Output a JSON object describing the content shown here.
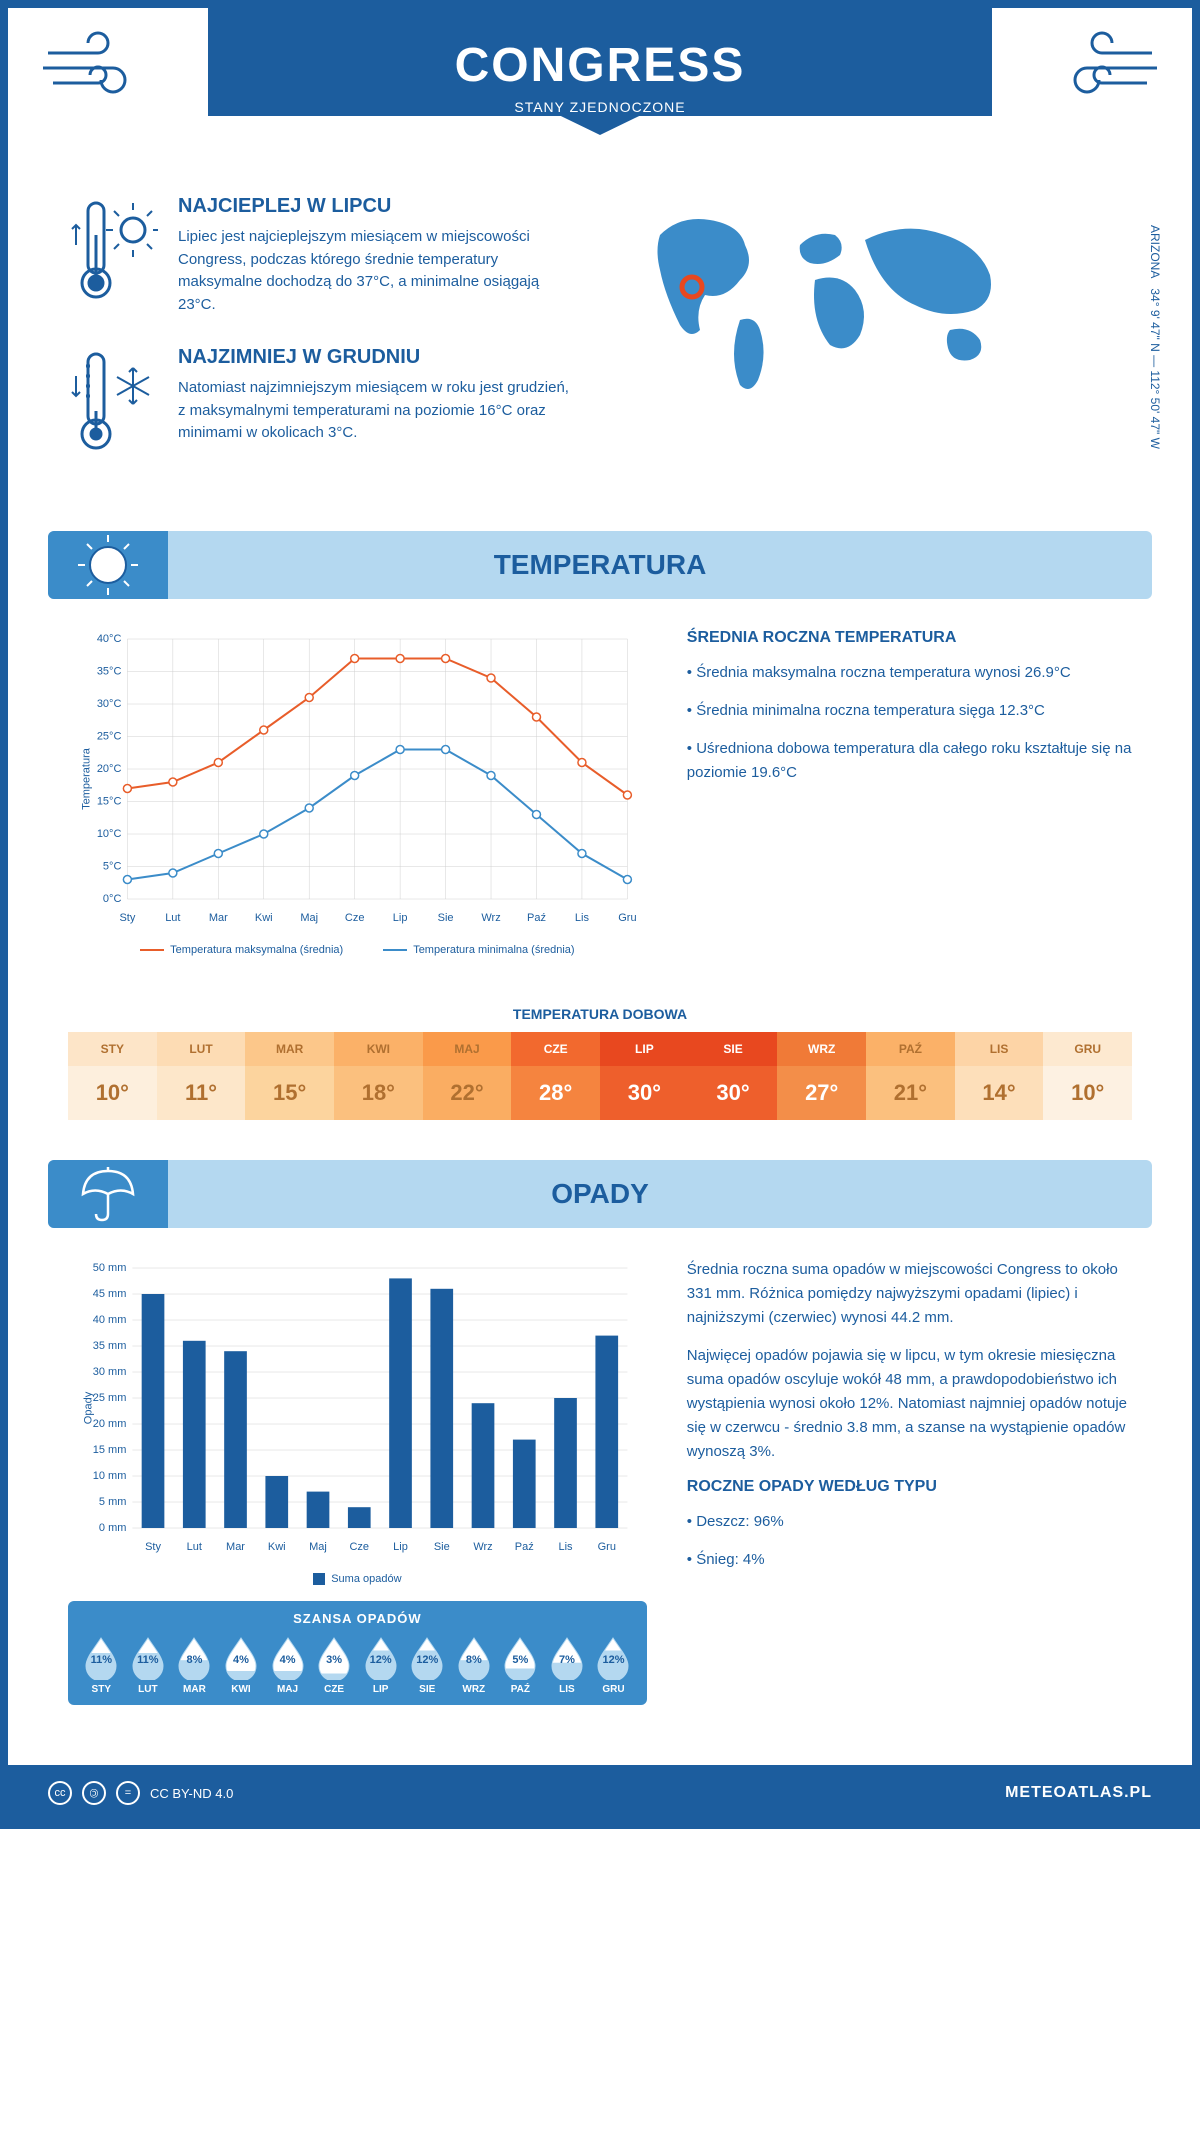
{
  "header": {
    "title": "CONGRESS",
    "subtitle": "STANY ZJEDNOCZONE"
  },
  "coords": {
    "text": "34° 9' 47\" N — 112° 50' 47\" W",
    "region": "ARIZONA"
  },
  "intro": {
    "warmest": {
      "heading": "NAJCIEPLEJ W LIPCU",
      "text": "Lipiec jest najcieplejszym miesiącem w miejscowości Congress, podczas którego średnie temperatury maksymalne dochodzą do 37°C, a minimalne osiągają 23°C."
    },
    "coldest": {
      "heading": "NAJZIMNIEJ W GRUDNIU",
      "text": "Natomiast najzimniejszym miesiącem w roku jest grudzień, z maksymalnymi temperaturami na poziomie 16°C oraz minimami w okolicach 3°C."
    }
  },
  "temperature": {
    "section_title": "TEMPERATURA",
    "months": [
      "Sty",
      "Lut",
      "Mar",
      "Kwi",
      "Maj",
      "Cze",
      "Lip",
      "Sie",
      "Wrz",
      "Paź",
      "Lis",
      "Gru"
    ],
    "max_series": {
      "values": [
        17,
        18,
        21,
        26,
        31,
        37,
        37,
        37,
        34,
        28,
        21,
        16
      ],
      "color": "#e85d2a",
      "label": "Temperatura maksymalna (średnia)"
    },
    "min_series": {
      "values": [
        3,
        4,
        7,
        10,
        14,
        19,
        23,
        23,
        19,
        13,
        7,
        3
      ],
      "color": "#3b8cc9",
      "label": "Temperatura minimalna (średnia)"
    },
    "ylabel": "Temperatura",
    "ylim": [
      0,
      40
    ],
    "ytick_step": 5,
    "ytick_suffix": "°C",
    "grid_color": "#d0d0d0",
    "marker_size": 4,
    "line_width": 2,
    "sidebar": {
      "heading": "ŚREDNIA ROCZNA TEMPERATURA",
      "bullets": [
        "Średnia maksymalna roczna temperatura wynosi 26.9°C",
        "Średnia minimalna roczna temperatura sięga 12.3°C",
        "Uśredniona dobowa temperatura dla całego roku kształtuje się na poziomie 19.6°C"
      ]
    },
    "daily": {
      "title": "TEMPERATURA DOBOWA",
      "months": [
        "STY",
        "LUT",
        "MAR",
        "KWI",
        "MAJ",
        "CZE",
        "LIP",
        "SIE",
        "WRZ",
        "PAŹ",
        "LIS",
        "GRU"
      ],
      "values": [
        "10°",
        "11°",
        "15°",
        "18°",
        "22°",
        "28°",
        "30°",
        "30°",
        "27°",
        "21°",
        "14°",
        "10°"
      ],
      "header_colors": [
        "#fde5c8",
        "#fddcb4",
        "#fcc78a",
        "#fbb168",
        "#fa9a4a",
        "#f2692e",
        "#e8481f",
        "#e8481f",
        "#f07a37",
        "#fbb168",
        "#fdd4a6",
        "#fde9d0"
      ],
      "value_colors": [
        "#fdefdd",
        "#fde7ca",
        "#fcd49e",
        "#fbc07e",
        "#faad62",
        "#f5843f",
        "#ee5f2c",
        "#ee5f2c",
        "#f38e49",
        "#fbc07e",
        "#fddfba",
        "#fdf1e2"
      ],
      "text_colors": [
        "#b07030",
        "#b07030",
        "#b07030",
        "#b07030",
        "#b07030",
        "#ffffff",
        "#ffffff",
        "#ffffff",
        "#ffffff",
        "#b07030",
        "#b07030",
        "#b07030"
      ]
    }
  },
  "precip": {
    "section_title": "OPADY",
    "months": [
      "Sty",
      "Lut",
      "Mar",
      "Kwi",
      "Maj",
      "Cze",
      "Lip",
      "Sie",
      "Wrz",
      "Paź",
      "Lis",
      "Gru"
    ],
    "values": [
      45,
      36,
      34,
      10,
      7,
      4,
      48,
      46,
      24,
      17,
      25,
      37
    ],
    "bar_color": "#1c5d9e",
    "bar_label": "Suma opadów",
    "ylabel": "Opady",
    "ylim": [
      0,
      50
    ],
    "ytick_step": 5,
    "ytick_suffix": " mm",
    "sidebar": {
      "p1": "Średnia roczna suma opadów w miejscowości Congress to około 331 mm. Różnica pomiędzy najwyższymi opadami (lipiec) i najniższymi (czerwiec) wynosi 44.2 mm.",
      "p2": "Najwięcej opadów pojawia się w lipcu, w tym okresie miesięczna suma opadów oscyluje wokół 48 mm, a prawdopodobieństwo ich wystąpienia wynosi około 12%. Natomiast najmniej opadów notuje się w czerwcu - średnio 3.8 mm, a szanse na wystąpienie opadów wynoszą 3%.",
      "heading": "ROCZNE OPADY WEDŁUG TYPU",
      "bullets": [
        "Deszcz: 96%",
        "Śnieg: 4%"
      ]
    },
    "chance": {
      "title": "SZANSA OPADÓW",
      "months": [
        "STY",
        "LUT",
        "MAR",
        "KWI",
        "MAJ",
        "CZE",
        "LIP",
        "SIE",
        "WRZ",
        "PAŹ",
        "LIS",
        "GRU"
      ],
      "values": [
        "11%",
        "11%",
        "8%",
        "4%",
        "4%",
        "3%",
        "12%",
        "12%",
        "8%",
        "5%",
        "7%",
        "12%"
      ],
      "fill_levels": [
        0.75,
        0.75,
        0.55,
        0.25,
        0.25,
        0.18,
        0.82,
        0.82,
        0.55,
        0.32,
        0.48,
        0.82
      ],
      "drop_fill": "#b4d8f0",
      "drop_empty": "#ffffff",
      "drop_text": "#1c5d9e"
    }
  },
  "footer": {
    "license": "CC BY-ND 4.0",
    "site": "METEOATLAS.PL"
  },
  "colors": {
    "primary": "#1c5d9e",
    "light": "#b4d8f0",
    "mid": "#3b8cc9"
  }
}
